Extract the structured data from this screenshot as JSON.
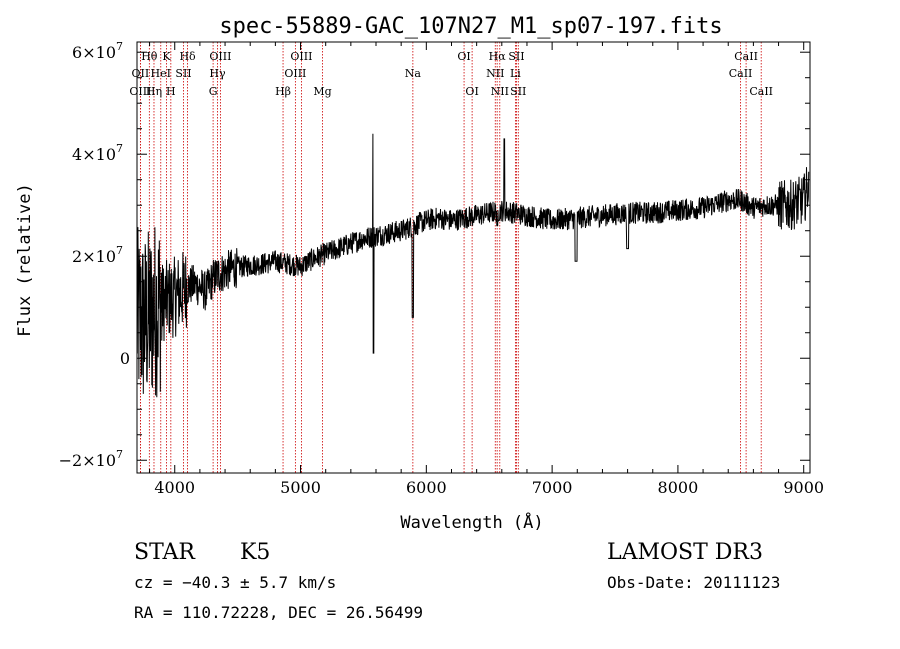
{
  "chart_data": {
    "type": "line",
    "title": "spec-55889-GAC_107N27_M1_sp07-197.fits",
    "xlabel": "Wavelength (Å)",
    "ylabel": "Flux (relative)",
    "xlim": [
      3700,
      9050
    ],
    "ylim": [
      -22500000.0,
      62000000.0
    ],
    "x_ticks": [
      4000,
      5000,
      6000,
      7000,
      8000,
      9000
    ],
    "x_tick_labels": [
      "4000",
      "5000",
      "6000",
      "7000",
      "8000",
      "9000"
    ],
    "y_ticks": [
      -20000000.0,
      0,
      20000000.0,
      40000000.0,
      60000000.0
    ],
    "y_tick_labels": [
      {
        "mant": "−2×10",
        "exp": "7"
      },
      {
        "mant": "0",
        "exp": ""
      },
      {
        "mant": "2×10",
        "exp": "7"
      },
      {
        "mant": "4×10",
        "exp": "7"
      },
      {
        "mant": "6×10",
        "exp": "7"
      }
    ],
    "series": [
      {
        "name": "flux",
        "x": [
          3700,
          3750,
          3800,
          3850,
          3900,
          3950,
          4000,
          4050,
          4100,
          4150,
          4200,
          4250,
          4300,
          4350,
          4400,
          4450,
          4500,
          4600,
          4700,
          4800,
          4900,
          5000,
          5100,
          5200,
          5300,
          5400,
          5500,
          5600,
          5700,
          5800,
          5900,
          6000,
          6100,
          6200,
          6300,
          6400,
          6500,
          6600,
          6700,
          6800,
          6900,
          7000,
          7200,
          7400,
          7600,
          7800,
          8000,
          8200,
          8400,
          8500,
          8600,
          8700,
          8800,
          8900,
          9000,
          9040
        ],
        "y": [
          8000000.0,
          7000000.0,
          8000000.0,
          10000000.0,
          11000000.0,
          11500000.0,
          12000000.0,
          13000000.0,
          14000000.0,
          14500000.0,
          14000000.0,
          13000000.0,
          15500000.0,
          16500000.0,
          17000000.0,
          17500000.0,
          17800000.0,
          18200000.0,
          18500000.0,
          19000000.0,
          18500000.0,
          18000000.0,
          19500000.0,
          20500000.0,
          21500000.0,
          22500000.0,
          23500000.0,
          24000000.0,
          24500000.0,
          25000000.0,
          26000000.0,
          27000000.0,
          27500000.0,
          27000000.0,
          27500000.0,
          28000000.0,
          28500000.0,
          29000000.0,
          28500000.0,
          28000000.0,
          27500000.0,
          27000000.0,
          27500000.0,
          28000000.0,
          28500000.0,
          28500000.0,
          29000000.0,
          29500000.0,
          31000000.0,
          31000000.0,
          29500000.0,
          30000000.0,
          30000000.0,
          30000000.0,
          31000000.0,
          34000000.0
        ]
      }
    ],
    "features": [
      {
        "x": 5577,
        "y": 44000000.0,
        "w": 8
      },
      {
        "x": 5580,
        "y": 1000000.0,
        "w": 8
      },
      {
        "x": 5892,
        "y": 8000000.0,
        "w": 12
      },
      {
        "x": 6563,
        "y": 26000000.0,
        "w": 10
      },
      {
        "x": 6620,
        "y": 43000000.0,
        "w": 6
      },
      {
        "x": 7190,
        "y": 19000000.0,
        "w": 20
      },
      {
        "x": 7600,
        "y": 21500000.0,
        "w": 20
      }
    ],
    "line_ids": [
      {
        "name": "Hθ",
        "wl": 3798,
        "row": 0
      },
      {
        "name": "OII",
        "wl": 3727,
        "row": 1
      },
      {
        "name": "OIII",
        "wl": 3727,
        "row": 2
      },
      {
        "name": "K",
        "wl": 3934,
        "row": 0
      },
      {
        "name": "HeI",
        "wl": 3889,
        "row": 1
      },
      {
        "name": "Hη",
        "wl": 3835,
        "row": 2
      },
      {
        "name": "SII",
        "wl": 4070,
        "row": 1
      },
      {
        "name": "H",
        "wl": 3969,
        "row": 2
      },
      {
        "name": "Hδ",
        "wl": 4102,
        "row": 0
      },
      {
        "name": "OIII",
        "wl": 4363,
        "row": 0
      },
      {
        "name": "Hγ",
        "wl": 4340,
        "row": 1
      },
      {
        "name": "G",
        "wl": 4305,
        "row": 2
      },
      {
        "name": "Hβ",
        "wl": 4861,
        "row": 2
      },
      {
        "name": "OIII",
        "wl": 5007,
        "row": 0
      },
      {
        "name": "OIII",
        "wl": 4959,
        "row": 1
      },
      {
        "name": "Mg",
        "wl": 5175,
        "row": 2
      },
      {
        "name": "Na",
        "wl": 5893,
        "row": 1
      },
      {
        "name": "OI",
        "wl": 6300,
        "row": 0
      },
      {
        "name": "OI",
        "wl": 6364,
        "row": 2
      },
      {
        "name": "Hα",
        "wl": 6563,
        "row": 0
      },
      {
        "name": "NII",
        "wl": 6548,
        "row": 1
      },
      {
        "name": "NII",
        "wl": 6584,
        "row": 2
      },
      {
        "name": "SII",
        "wl": 6717,
        "row": 0
      },
      {
        "name": "Li",
        "wl": 6708,
        "row": 1
      },
      {
        "name": "SII",
        "wl": 6731,
        "row": 2
      },
      {
        "name": "CaII",
        "wl": 8542,
        "row": 0
      },
      {
        "name": "CaII",
        "wl": 8498,
        "row": 1
      },
      {
        "name": "CaII",
        "wl": 8662,
        "row": 2
      }
    ]
  },
  "footer": {
    "class_label": "STAR",
    "subclass": "K5",
    "survey": "LAMOST DR3",
    "cz": "cz = −40.3 ± 5.7 km/s",
    "obs_date": "Obs-Date: 20111123",
    "coords": "RA = 110.72228, DEC =  26.56499"
  }
}
